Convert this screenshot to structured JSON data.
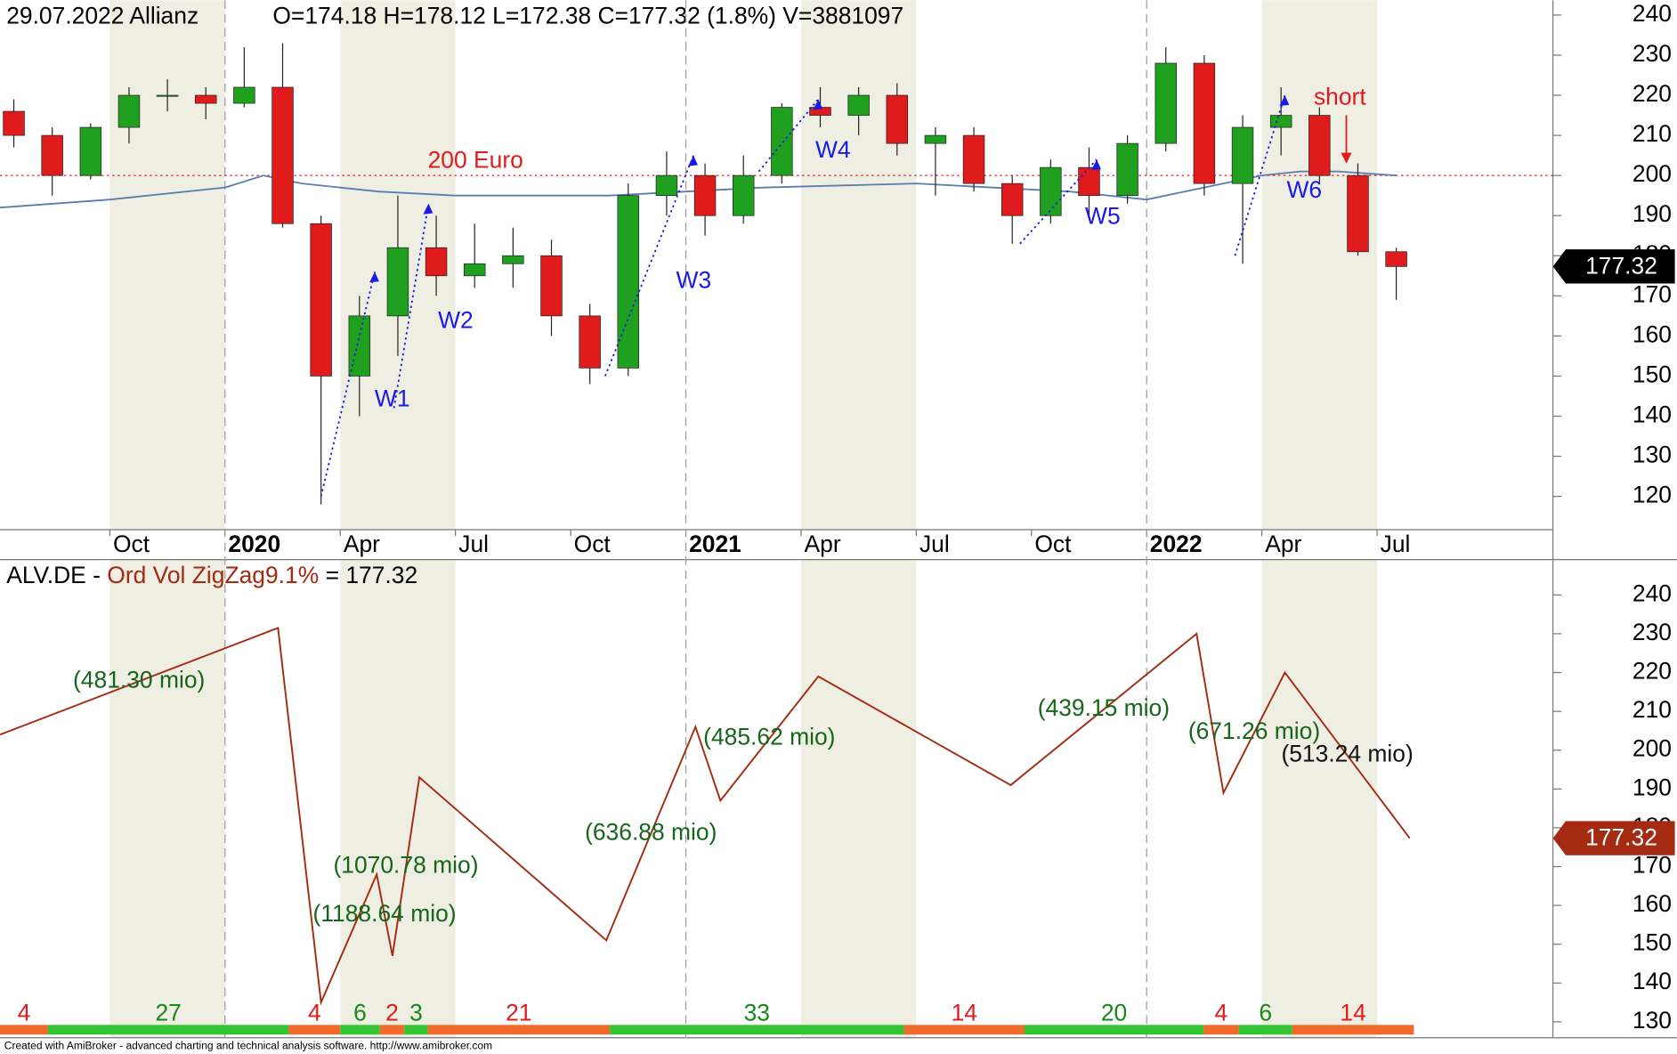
{
  "chart_data": [
    {
      "type": "candlestick",
      "title": "29.07.2022 Allianz",
      "subtitle": "O=174.18  H=178.12  L=172.38  C=177.32 (1.8%)  V=3881097",
      "x": [
        0.5,
        1.5,
        2.5,
        3.5,
        4.5,
        5.5,
        6.5,
        7.5,
        8.5,
        9.5,
        10.5,
        11.5,
        12.5,
        13.5,
        14.5,
        15.5,
        16.5,
        17.5,
        18.5,
        19.5,
        20.5,
        21.5,
        22.5,
        23.5,
        24.5,
        25.5,
        26.5,
        27.5,
        28.5,
        29.5,
        30.5,
        31.5,
        32.5,
        33.5,
        34.5,
        35.5,
        36.5
      ],
      "open": [
        216,
        210,
        200,
        212,
        220,
        220,
        218,
        222,
        188,
        150,
        165,
        182,
        175,
        178,
        180,
        165,
        152,
        195,
        200,
        190,
        200,
        217,
        215,
        220,
        208,
        210,
        198,
        190,
        202,
        195,
        208,
        228,
        198,
        212,
        215,
        200,
        181
      ],
      "high": [
        219,
        212,
        213,
        222,
        224,
        222,
        232,
        233,
        190,
        170,
        195,
        190,
        188,
        187,
        184,
        168,
        198,
        206,
        203,
        205,
        218,
        222,
        222,
        223,
        212,
        212,
        200,
        204,
        207,
        210,
        232,
        230,
        215,
        222,
        217,
        203,
        182
      ],
      "low": [
        207,
        195,
        199,
        208,
        216,
        214,
        217,
        187,
        118,
        140,
        155,
        170,
        172,
        172,
        160,
        148,
        150,
        190,
        185,
        188,
        198,
        212,
        210,
        205,
        195,
        196,
        183,
        188,
        190,
        193,
        206,
        195,
        178,
        205,
        198,
        180,
        169
      ],
      "close": [
        210,
        200,
        212,
        220,
        220,
        218,
        222,
        188,
        150,
        165,
        182,
        175,
        178,
        180,
        165,
        152,
        195,
        200,
        190,
        200,
        217,
        215,
        220,
        208,
        210,
        198,
        190,
        202,
        195,
        208,
        228,
        198,
        212,
        215,
        200,
        181,
        177.32
      ],
      "up_color": "#1fa01f",
      "down_color": "#e01b1b",
      "ma": {
        "x": [
          0.14,
          3,
          6,
          7,
          8,
          10,
          12,
          16,
          18,
          20,
          24,
          26,
          28,
          30,
          31,
          32,
          33,
          34,
          35,
          36.5
        ],
        "values": [
          192,
          194,
          197,
          200,
          198,
          196,
          195,
          195,
          196,
          197,
          198,
          197,
          196,
          194,
          196,
          198,
          200,
          201,
          201,
          200
        ],
        "color": "#5a7cb0"
      },
      "hline": {
        "value": 200,
        "label": "200 Euro",
        "color": "#e01b1b"
      },
      "wave_color": "#1a1ae6",
      "waves": [
        {
          "label": "W1",
          "x": [
            8.5,
            9.9
          ],
          "y": [
            120,
            176
          ]
        },
        {
          "label": "W2",
          "x": [
            10.4,
            11.3
          ],
          "y": [
            142,
            193
          ]
        },
        {
          "label": "W3",
          "x": [
            15.9,
            18.2
          ],
          "y": [
            150,
            205
          ]
        },
        {
          "label": "W4",
          "x": [
            19.9,
            21.45
          ],
          "y": [
            201,
            219
          ]
        },
        {
          "label": "W5",
          "x": [
            26.7,
            28.7
          ],
          "y": [
            183,
            204
          ]
        },
        {
          "label": "W6",
          "x": [
            32.3,
            33.6
          ],
          "y": [
            180,
            220
          ]
        }
      ],
      "annotation": {
        "text": "short",
        "x": 35.2,
        "y": [
          215,
          203
        ],
        "color": "#e01b1b"
      },
      "last_value": 177.32,
      "last_color": "#000000",
      "xlim": [
        0.14,
        40.58
      ],
      "ylim": [
        111.7,
        243.7
      ],
      "xticks": [
        {
          "value": 3,
          "label": "Oct"
        },
        {
          "value": 6,
          "label": "2020"
        },
        {
          "value": 9,
          "label": "Apr"
        },
        {
          "value": 12,
          "label": "Jul"
        },
        {
          "value": 15,
          "label": "Oct"
        },
        {
          "value": 18,
          "label": "2021"
        },
        {
          "value": 21,
          "label": "Apr"
        },
        {
          "value": 24,
          "label": "Jul"
        },
        {
          "value": 27,
          "label": "Oct"
        },
        {
          "value": 30,
          "label": "2022"
        },
        {
          "value": 33,
          "label": "Apr"
        },
        {
          "value": 36,
          "label": "Jul"
        }
      ],
      "yticks": [
        120,
        130,
        140,
        150,
        160,
        170,
        180,
        190,
        200,
        210,
        220,
        230,
        240
      ]
    },
    {
      "type": "line",
      "title": [
        "ALV.DE -",
        "Ord Vol ZigZag9.1%",
        "= 177.32"
      ],
      "x": [
        0.14,
        7.38,
        8.5,
        9.95,
        10.36,
        11.06,
        15.93,
        18.25,
        18.9,
        21.45,
        26.46,
        31.3,
        32.0,
        33.6,
        36.85
      ],
      "values": [
        204,
        231.5,
        135,
        168,
        147,
        193,
        151,
        206,
        187,
        219,
        191,
        230,
        189,
        220,
        177.32
      ],
      "color": "#a42a12",
      "segment_labels": [
        "(481.30 mio)",
        null,
        null,
        "(1188.64 mio)",
        "(1070.78 mio)",
        null,
        "(636.88 mio)",
        null,
        "(485.62 mio)",
        null,
        "(439.15 mio)",
        null,
        "(671.26 mio)",
        "(513.24 mio)"
      ],
      "segment_label_colors": [
        "#16661a",
        null,
        null,
        "#16661a",
        "#16661a",
        null,
        "#16661a",
        null,
        "#16661a",
        null,
        "#16661a",
        null,
        "#16661a",
        "#111111"
      ],
      "legs": {
        "bounds": [
          0.14,
          1.39,
          7.66,
          9.0,
          10.03,
          10.67,
          11.28,
          16.02,
          23.68,
          26.82,
          31.48,
          32.4,
          33.79,
          36.96
        ],
        "counts": [
          4,
          27,
          4,
          6,
          2,
          3,
          21,
          33,
          14,
          20,
          4,
          6,
          14
        ],
        "colors": [
          "#f26a2a",
          "#33c433",
          "#f26a2a",
          "#33c433",
          "#f26a2a",
          "#33c433",
          "#f26a2a",
          "#33c433",
          "#f26a2a",
          "#33c433",
          "#f26a2a",
          "#33c433",
          "#f26a2a"
        ],
        "label_colors": [
          "#e01b1b",
          "#16881a",
          "#e01b1b",
          "#16881a",
          "#e01b1b",
          "#16881a",
          "#e01b1b",
          "#16881a",
          "#e01b1b",
          "#16881a",
          "#e01b1b",
          "#16881a",
          "#e01b1b"
        ]
      },
      "last_value": 177.32,
      "last_color": "#a42a12",
      "xlim": [
        0.14,
        40.58
      ],
      "ylim": [
        125.9,
        249.1
      ],
      "yticks": [
        130,
        140,
        150,
        160,
        170,
        180,
        190,
        200,
        210,
        220,
        230,
        240
      ]
    }
  ],
  "footer": "Created with AmiBroker - advanced charting and technical analysis software. http://www.amibroker.com"
}
